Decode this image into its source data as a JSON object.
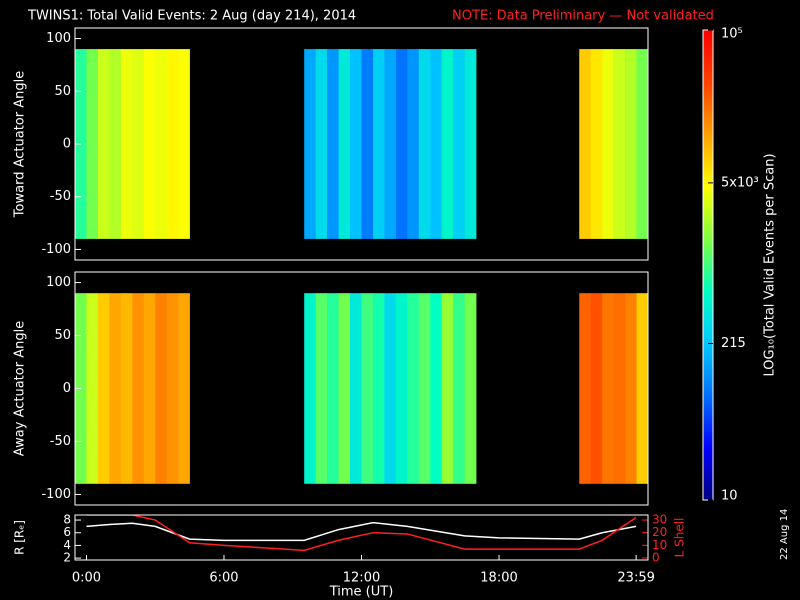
{
  "title": "TWINS1: Total Valid Events:  2 Aug (day 214), 2014",
  "note": "NOTE: Data Preliminary — Not validated",
  "stamp": "22 Aug 14",
  "colorbar": {
    "label": "LOG₁₀(Total Valid Events per Scan)",
    "clim": [
      10,
      100000
    ],
    "log": true,
    "ticks": [
      {
        "value": 100000,
        "label": "10⁵"
      },
      {
        "value": 5000,
        "label": "5x10³"
      },
      215,
      10
    ],
    "colormap": [
      "#00007f",
      "#0000ff",
      "#0070ff",
      "#00c8ff",
      "#00ffc0",
      "#80ff40",
      "#ffff00",
      "#ffa000",
      "#ff4000",
      "#ff0000"
    ]
  },
  "chart_data": [
    {
      "type": "heatmap",
      "ylabel": "Toward Actuator Angle",
      "xlim": [
        -0.5,
        24.5
      ],
      "ylim": [
        -110,
        110
      ],
      "yticks": [
        100,
        50,
        0,
        -50,
        -100
      ],
      "data_ylim": [
        -90,
        90
      ],
      "xbins": [
        -0.5,
        0,
        0.5,
        1,
        1.5,
        2,
        2.5,
        3,
        3.5,
        4,
        4.5,
        5,
        5.5,
        6,
        6.5,
        7,
        7.5,
        8,
        8.5,
        9,
        9.5,
        10,
        10.5,
        11,
        11.5,
        12,
        12.5,
        13,
        13.5,
        14,
        14.5,
        15,
        15.5,
        16,
        16.5,
        17,
        17.5,
        18,
        18.5,
        19,
        19.5,
        20,
        20.5,
        21,
        21.5,
        22,
        22.5,
        23,
        23.5,
        24,
        24.5
      ],
      "values": [
        800,
        1500,
        3000,
        2500,
        4000,
        3500,
        4500,
        4000,
        5000,
        4500,
        null,
        null,
        null,
        null,
        null,
        null,
        null,
        null,
        null,
        null,
        150,
        300,
        120,
        400,
        200,
        90,
        250,
        150,
        80,
        120,
        300,
        200,
        500,
        250,
        400,
        null,
        null,
        null,
        null,
        null,
        null,
        null,
        null,
        null,
        8000,
        6000,
        4000,
        3000,
        2500,
        1500
      ]
    },
    {
      "type": "heatmap",
      "ylabel": "Away Actuator Angle",
      "xlim": [
        -0.5,
        24.5
      ],
      "ylim": [
        -110,
        110
      ],
      "yticks": [
        100,
        50,
        0,
        -50,
        -100
      ],
      "data_ylim": [
        -90,
        90
      ],
      "xbins": [
        -0.5,
        0,
        0.5,
        1,
        1.5,
        2,
        2.5,
        3,
        3.5,
        4,
        4.5,
        5,
        5.5,
        6,
        6.5,
        7,
        7.5,
        8,
        8.5,
        9,
        9.5,
        10,
        10.5,
        11,
        11.5,
        12,
        12.5,
        13,
        13.5,
        14,
        14.5,
        15,
        15.5,
        16,
        16.5,
        17,
        17.5,
        18,
        18.5,
        19,
        19.5,
        20,
        20.5,
        21,
        21.5,
        22,
        22.5,
        23,
        23.5,
        24,
        24.5
      ],
      "values": [
        1500,
        3000,
        8000,
        12000,
        10000,
        15000,
        12000,
        18000,
        15000,
        12000,
        null,
        null,
        null,
        null,
        null,
        null,
        null,
        null,
        null,
        null,
        500,
        1200,
        800,
        1500,
        400,
        1000,
        700,
        300,
        500,
        800,
        1200,
        600,
        2000,
        900,
        1500,
        null,
        null,
        null,
        null,
        null,
        null,
        null,
        null,
        null,
        25000,
        30000,
        20000,
        22000,
        18000,
        8000
      ]
    },
    {
      "type": "line",
      "xlabel": "Time (UT)",
      "xlim": [
        -0.5,
        24.5
      ],
      "xticks": [
        {
          "value": 0,
          "label": "0:00"
        },
        {
          "value": 6,
          "label": "6:00"
        },
        {
          "value": 12,
          "label": "12:00"
        },
        {
          "value": 18,
          "label": "18:00"
        },
        {
          "value": 23.983,
          "label": "23:59"
        }
      ],
      "ylim": [
        1.7,
        8.8
      ],
      "yticks": [
        2,
        4,
        6,
        8
      ],
      "y2lim": [
        -1.6,
        34
      ],
      "y2ticks": [
        0,
        10,
        20,
        30
      ],
      "x": [
        0,
        1,
        2,
        3,
        4.5,
        6,
        9.5,
        11,
        12.5,
        14,
        16.5,
        18,
        21.5,
        22.5,
        23.98
      ],
      "series": [
        {
          "name": "R [Rₑ]",
          "color": "#ffffff",
          "values": [
            7,
            7.3,
            7.5,
            7,
            5,
            4.8,
            4.8,
            6.5,
            7.6,
            7,
            5.5,
            5.2,
            5,
            6,
            7
          ]
        },
        {
          "name": "L Shell",
          "color": "#ff2020",
          "axis": "y2",
          "values": [
            34,
            34,
            34,
            30,
            12,
            10,
            6,
            14,
            20,
            19,
            7,
            7,
            7,
            14,
            32
          ]
        }
      ]
    }
  ]
}
